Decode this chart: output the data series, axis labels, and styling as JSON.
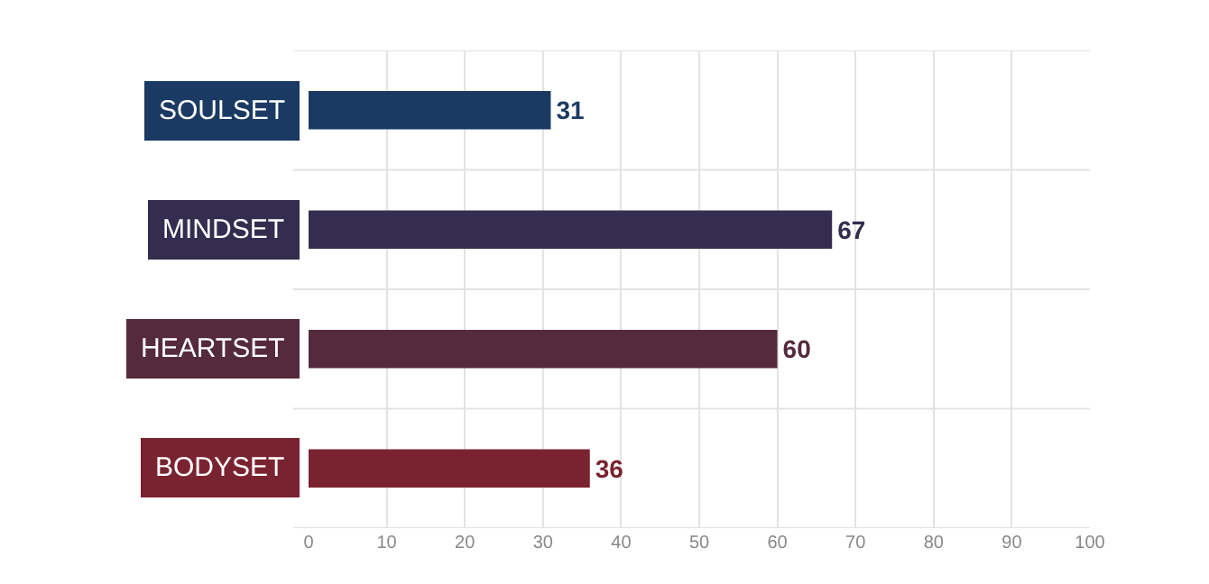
{
  "chart_data": {
    "type": "bar",
    "orientation": "horizontal",
    "categories": [
      "SOULSET",
      "MINDSET",
      "HEARTSET",
      "BODYSET"
    ],
    "values": [
      31,
      67,
      60,
      36
    ],
    "colors": [
      "#1b3a63",
      "#342d4f",
      "#552a3d",
      "#7a2330"
    ],
    "xlim": [
      0,
      100
    ],
    "xticks": [
      0,
      10,
      20,
      30,
      40,
      50,
      60,
      70,
      80,
      90,
      100
    ],
    "grid": true,
    "data_labels": true
  }
}
